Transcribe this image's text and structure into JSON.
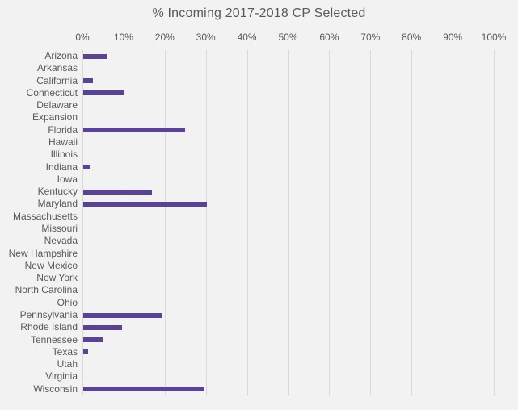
{
  "chart_data": {
    "type": "bar",
    "orientation": "horizontal",
    "title": "% Incoming 2017-2018 CP Selected",
    "xlabel": "",
    "ylabel": "",
    "xlim": [
      0,
      100
    ],
    "x_axis_position": "top",
    "grid": true,
    "legend": false,
    "tick_labels": [
      "0%",
      "10%",
      "20%",
      "30%",
      "40%",
      "50%",
      "60%",
      "70%",
      "80%",
      "90%",
      "100%"
    ],
    "tick_values": [
      0,
      10,
      20,
      30,
      40,
      50,
      60,
      70,
      80,
      90,
      100
    ],
    "categories": [
      "Arizona",
      "Arkansas",
      "California",
      "Connecticut",
      "Delaware",
      "Expansion",
      "Florida",
      "Hawaii",
      "Illinois",
      "Indiana",
      "Iowa",
      "Kentucky",
      "Maryland",
      "Massachusetts",
      "Missouri",
      "Nevada",
      "New Hampshire",
      "New Mexico",
      "New York",
      "North Carolina",
      "Ohio",
      "Pennsylvania",
      "Rhode Island",
      "Tennessee",
      "Texas",
      "Utah",
      "Virginia",
      "Wisconsin"
    ],
    "values": [
      5.8,
      0,
      2.3,
      10,
      0,
      0,
      24.7,
      0,
      0,
      1.5,
      0,
      16.7,
      30,
      0,
      0,
      0,
      0,
      0,
      0,
      0,
      0,
      19.1,
      9.4,
      4.7,
      1.2,
      0,
      0,
      29.4
    ],
    "colors": {
      "bar": "#5a4296",
      "background": "#f2f2f2",
      "gridline": "#d9d9d9",
      "text": "#595959"
    }
  }
}
